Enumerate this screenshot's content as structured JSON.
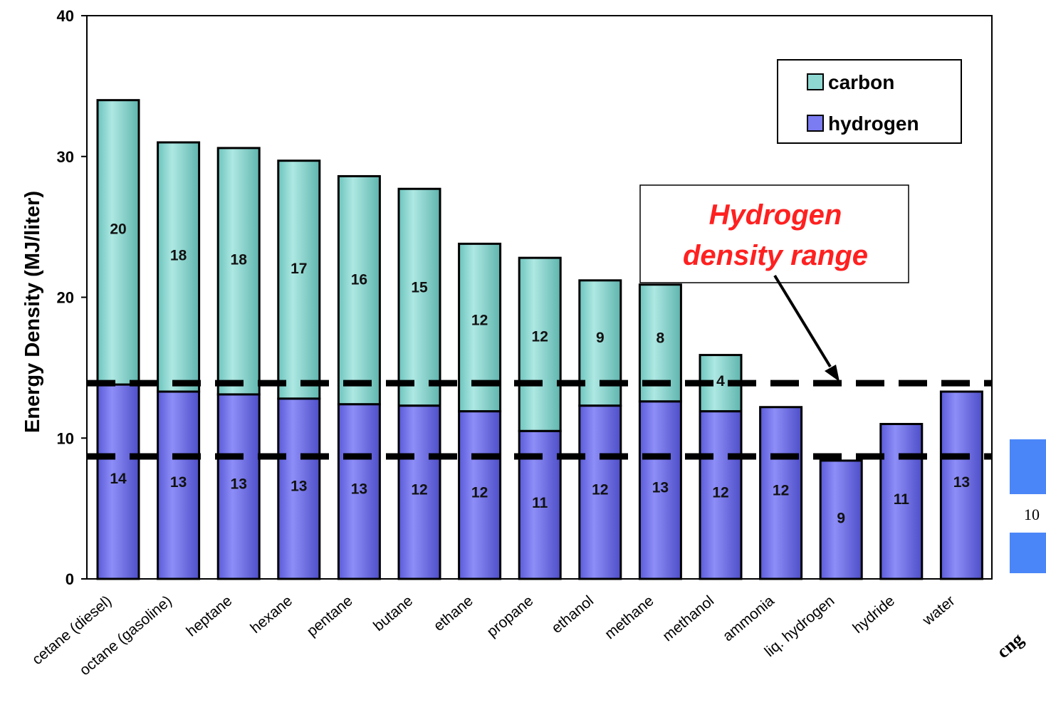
{
  "chart_data": {
    "type": "bar",
    "stacked": true,
    "categories": [
      "cetane (diesel)",
      "octane (gasoline)",
      "heptane",
      "hexane",
      "pentane",
      "butane",
      "ethane",
      "propane",
      "ethanol",
      "methane",
      "methanol",
      "ammonia",
      "liq. hydrogen",
      "hydride",
      "water"
    ],
    "series": [
      {
        "name": "hydrogen",
        "color": "#7b7bf2",
        "values": [
          14,
          13,
          13,
          13,
          13,
          12,
          12,
          11,
          12,
          13,
          12,
          12,
          9,
          11,
          13
        ],
        "totals": [
          13.8,
          13.3,
          13.1,
          12.8,
          12.4,
          12.3,
          11.9,
          10.5,
          12.3,
          12.6,
          11.9,
          12.2,
          8.4,
          11.0,
          13.3
        ]
      },
      {
        "name": "carbon",
        "color": "#8fd8d2",
        "values": [
          20,
          18,
          18,
          17,
          16,
          15,
          12,
          12,
          9,
          8,
          4,
          null,
          null,
          null,
          null
        ],
        "totals": [
          34.0,
          31.0,
          30.6,
          29.7,
          28.6,
          27.7,
          23.8,
          22.8,
          21.2,
          20.9,
          15.9,
          null,
          null,
          null,
          null
        ]
      }
    ],
    "ylabel": "Energy Density (MJ/liter)",
    "ylim": [
      0,
      40
    ],
    "yticks": [
      "0",
      "10",
      "20",
      "30",
      "40"
    ],
    "ytick_values": [
      0,
      10,
      20,
      30,
      40
    ],
    "reference_lines": [
      13.9,
      8.7
    ],
    "legend": {
      "placement": "top-right",
      "entries": [
        "carbon",
        "hydrogen"
      ]
    },
    "annotation": {
      "line1": "Hydrogen",
      "line2": "density range"
    },
    "grid": false
  },
  "extra_category_label": "cng",
  "page_number": "10",
  "colors": {
    "accent_square": "#4a86f7",
    "annotation_text": "#ff2020"
  }
}
